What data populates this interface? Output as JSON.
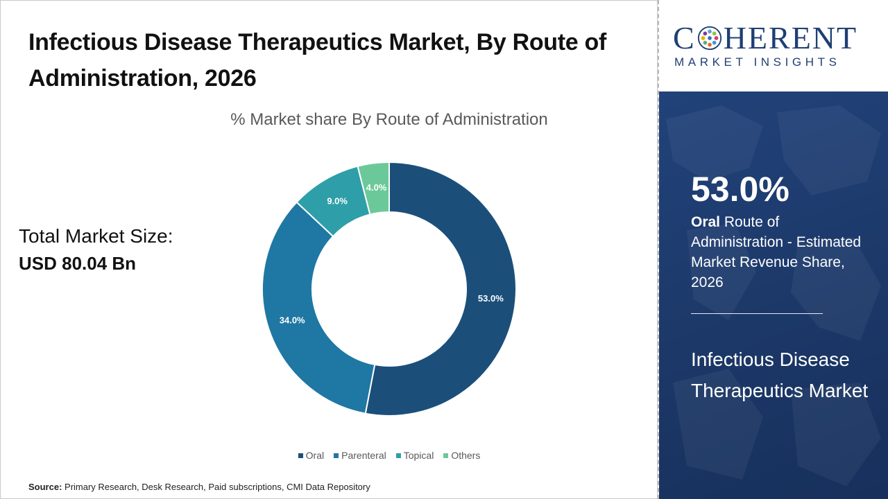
{
  "title": "Infectious Disease Therapeutics Market, By Route of Administration, 2026",
  "total_market": {
    "label": "Total Market Size:",
    "value": "USD 80.04 Bn"
  },
  "source": {
    "label": "Source:",
    "text": "Primary Research, Desk Research, Paid subscriptions, CMI Data Repository"
  },
  "brand": {
    "name_part1": "C",
    "name_part2": "HERENT",
    "subtitle": "MARKET INSIGHTS",
    "color": "#1f3f73"
  },
  "highlight": {
    "percent": "53.0%",
    "segment": "Oral",
    "description": "Route of Administration - Estimated Market Revenue Share, 2026",
    "market_name": "Infectious Disease Therapeutics Market"
  },
  "chart_data": {
    "type": "pie",
    "subtype": "donut",
    "title": "% Market share By Route of Administration",
    "categories": [
      "Oral",
      "Parenteral",
      "Topical",
      "Others"
    ],
    "values": [
      53.0,
      34.0,
      9.0,
      4.0
    ],
    "data_labels": [
      "53.0%",
      "34.0%",
      "9.0%",
      "4.0%"
    ],
    "colors": [
      "#1b4f7a",
      "#1f77a3",
      "#2e9fa8",
      "#6bc999"
    ],
    "legend_position": "bottom"
  }
}
